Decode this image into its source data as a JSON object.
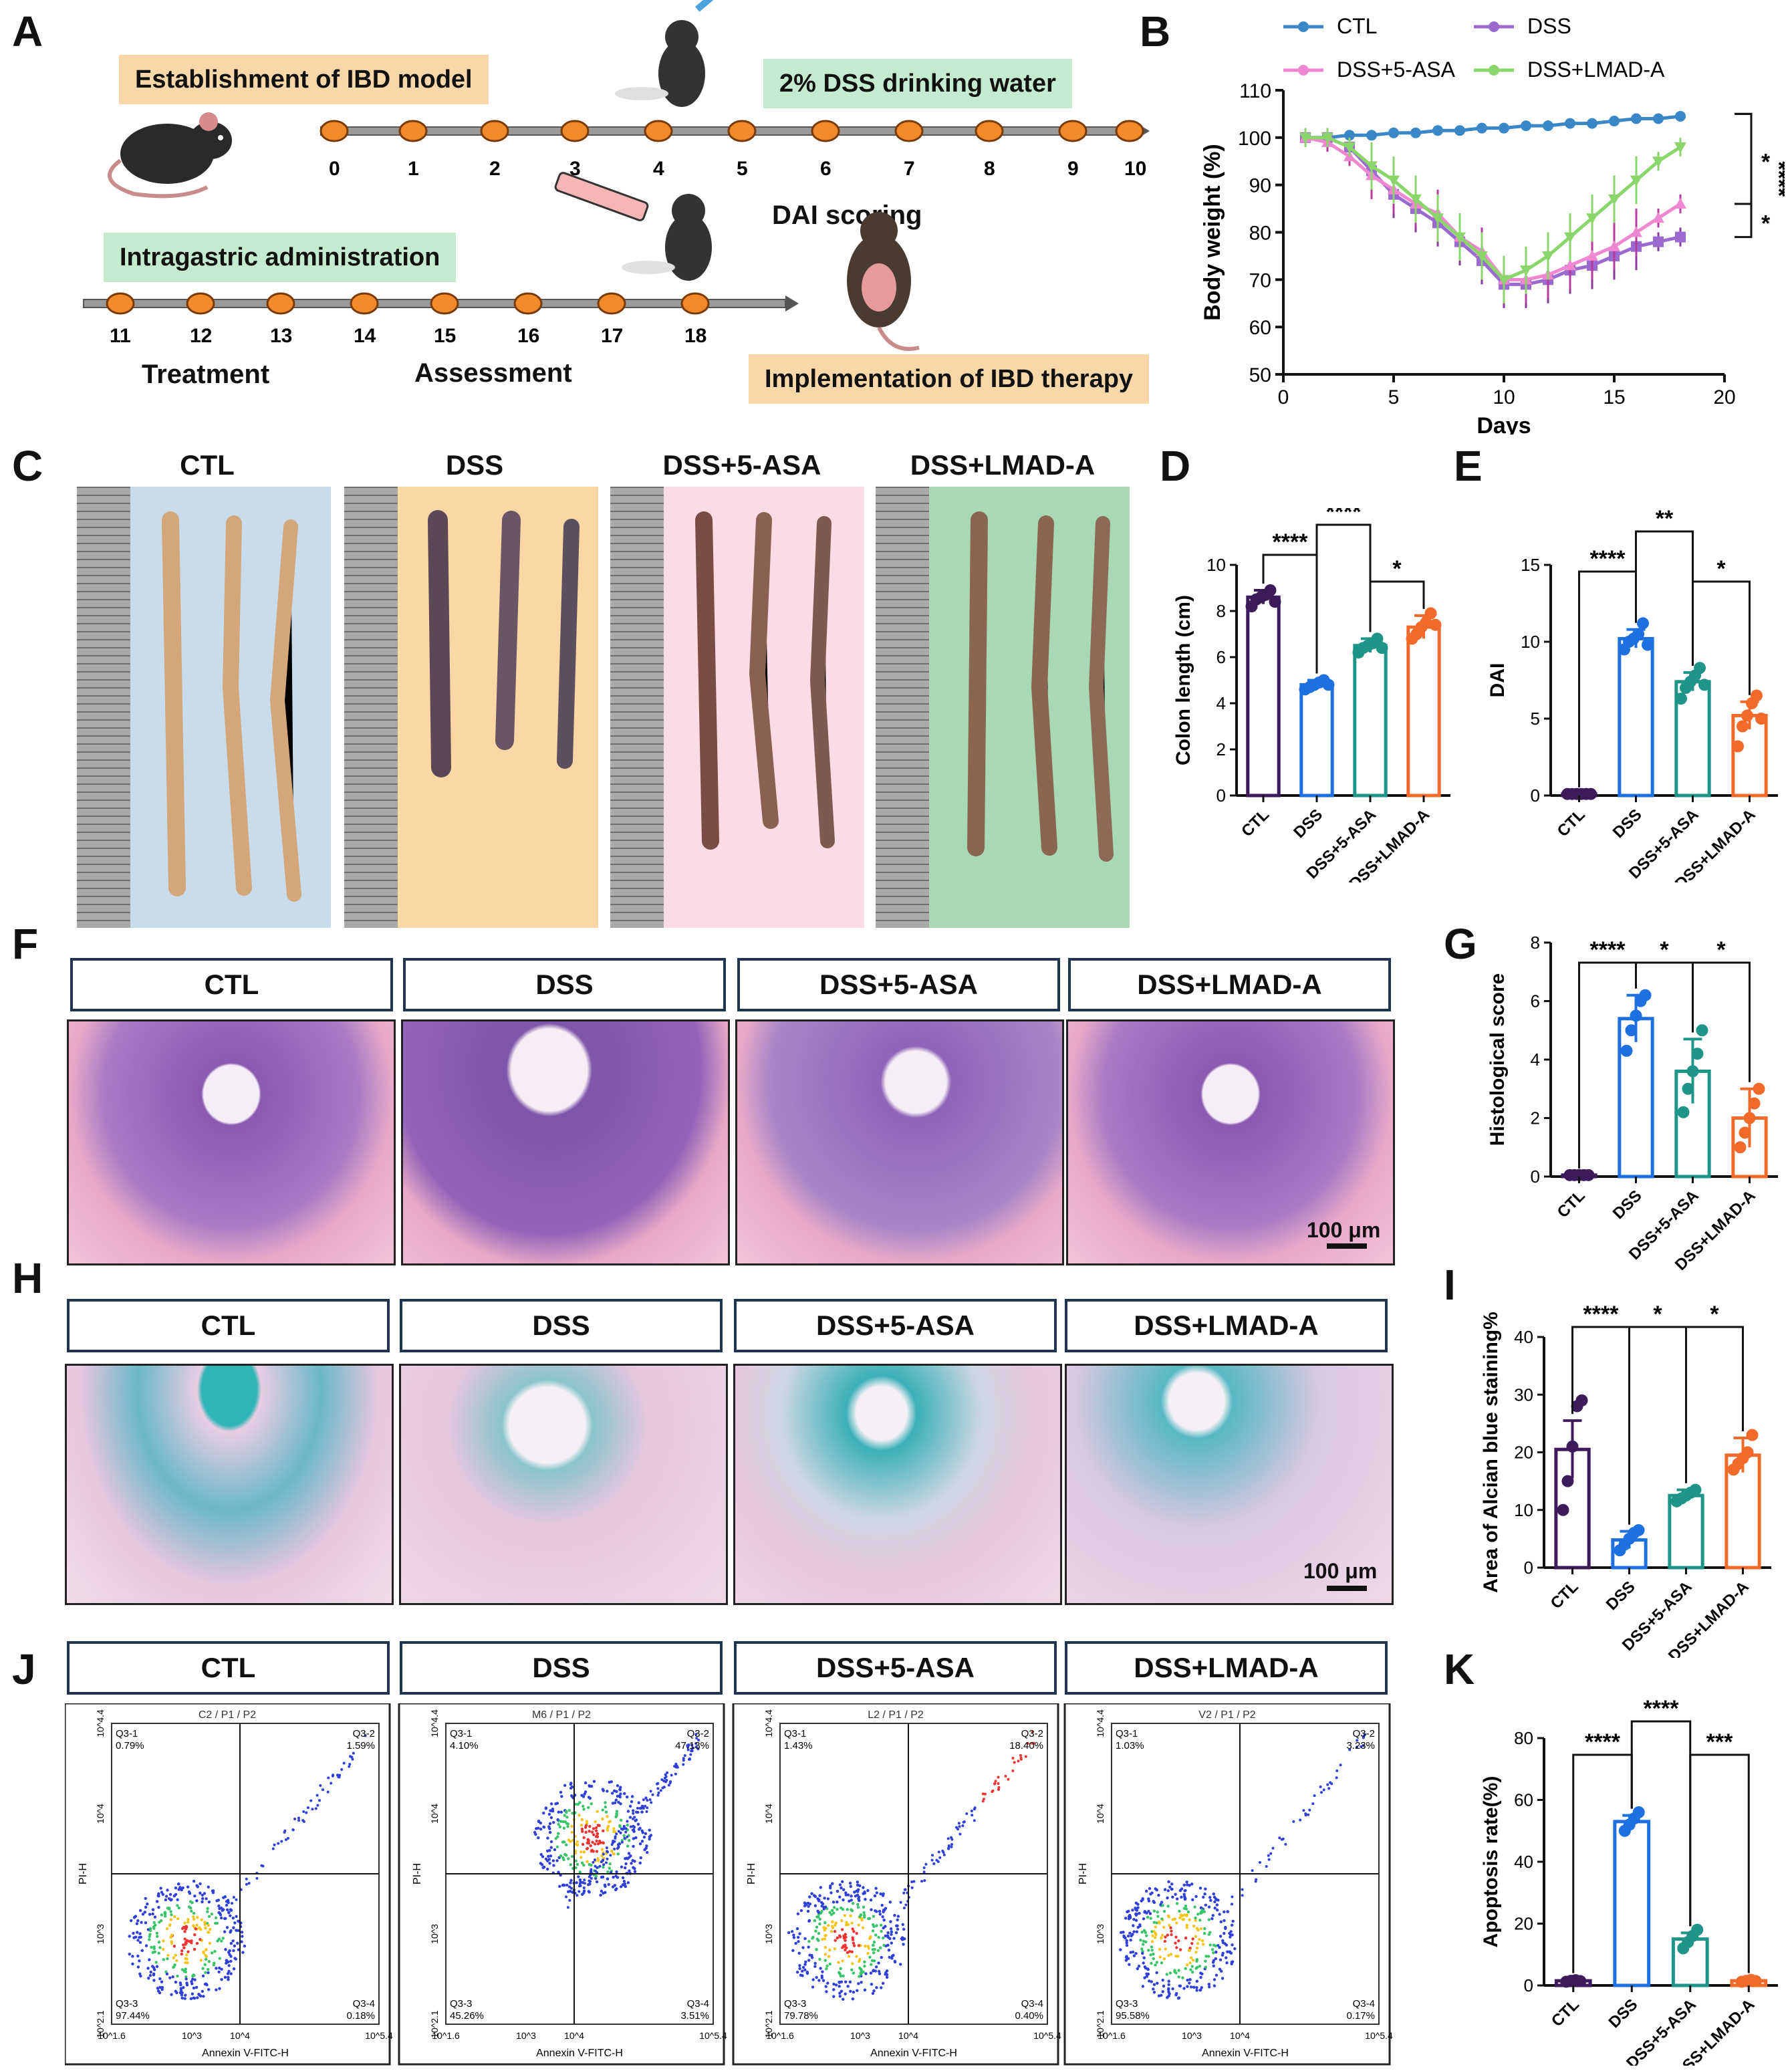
{
  "panels": {
    "A": "A",
    "B": "B",
    "C": "C",
    "D": "D",
    "E": "E",
    "F": "F",
    "G": "G",
    "H": "H",
    "I": "I",
    "J": "J",
    "K": "K"
  },
  "panelA": {
    "box1": "Establishment of IBD model",
    "box2": "2% DSS drinking water",
    "box3": "Intragastric administration",
    "box4": "Implementation of IBD therapy",
    "dai": "DAI scoring",
    "treatment": "Treatment",
    "assessment": "Assessment",
    "timeline1": [
      "0",
      "1",
      "2",
      "3",
      "4",
      "5",
      "6",
      "7",
      "8",
      "9",
      "10"
    ],
    "timeline2": [
      "11",
      "12",
      "13",
      "14",
      "15",
      "16",
      "17",
      "18"
    ]
  },
  "groups": [
    "CTL",
    "DSS",
    "DSS+5-ASA",
    "DSS+LMAD-A"
  ],
  "scale_bar": "100 μm",
  "colors": {
    "CTL": "#3d1b5a",
    "DSS": "#1e6fe0",
    "ASA": "#1f9488",
    "LMAD": "#f26a2a",
    "lineCTL": "#3a87c8",
    "lineDSS": "#9a6ad0",
    "lineASA": "#ef88d0",
    "lineLMAD": "#8ad66a"
  },
  "facs": [
    {
      "title": "C2 / P1 / P2",
      "q1": "Q3-1",
      "v1": "0.79%",
      "q2": "Q3-2",
      "v2": "1.59%",
      "q3": "Q3-3",
      "v3": "97.44%",
      "q4": "Q3-4",
      "v4": "0.18%"
    },
    {
      "title": "M6 / P1 / P2",
      "q1": "Q3-1",
      "v1": "4.10%",
      "q2": "Q3-2",
      "v2": "47.13%",
      "q3": "Q3-3",
      "v3": "45.26%",
      "q4": "Q3-4",
      "v4": "3.51%"
    },
    {
      "title": "L2 / P1 / P2",
      "q1": "Q3-1",
      "v1": "1.43%",
      "q2": "Q3-2",
      "v2": "18.40%",
      "q3": "Q3-3",
      "v3": "79.78%",
      "q4": "Q3-4",
      "v4": "0.40%"
    },
    {
      "title": "V2 / P1 / P2",
      "q1": "Q3-1",
      "v1": "1.03%",
      "q2": "Q3-2",
      "v2": "3.23%",
      "q3": "Q3-3",
      "v3": "95.58%",
      "q4": "Q3-4",
      "v4": "0.17%"
    }
  ],
  "facs_axes": {
    "xlabel": "Annexin V-FITC-H",
    "ylabel": "PI-H",
    "xticks": [
      "10^1.6",
      "10^3",
      "10^4",
      "10^5.4"
    ],
    "yticks": [
      "10^2.1",
      "10^3",
      "10^4",
      "10^4.4"
    ]
  },
  "chart_data": [
    {
      "id": "B",
      "type": "line",
      "xlabel": "Days",
      "ylabel": "Body weight (%)",
      "xlim": [
        0,
        20
      ],
      "ylim": [
        50,
        110
      ],
      "xticks": [
        0,
        5,
        10,
        15,
        20
      ],
      "yticks": [
        50,
        60,
        70,
        80,
        90,
        100,
        110
      ],
      "x": [
        1,
        2,
        3,
        4,
        5,
        6,
        7,
        8,
        9,
        10,
        11,
        12,
        13,
        14,
        15,
        16,
        17,
        18
      ],
      "series": [
        {
          "name": "CTL",
          "values": [
            100,
            100,
            100.5,
            100.5,
            101,
            101,
            101.5,
            101.5,
            102,
            102,
            102.5,
            102.5,
            103,
            103,
            103.5,
            104,
            104,
            104.5
          ]
        },
        {
          "name": "DSS",
          "values": [
            100,
            100,
            98,
            93,
            88,
            85,
            82,
            78,
            74,
            69,
            69,
            70,
            72,
            73,
            75,
            77,
            78,
            79
          ]
        },
        {
          "name": "DSS+5-ASA",
          "values": [
            100,
            99,
            96,
            92,
            89,
            86,
            84,
            79,
            76,
            70,
            70,
            71,
            73,
            75,
            77,
            80,
            83,
            86
          ]
        },
        {
          "name": "DSS+LMAD-A",
          "values": [
            100,
            100,
            98,
            94,
            91,
            87,
            83,
            79,
            75,
            70,
            72,
            75,
            79,
            83,
            87,
            91,
            95,
            98
          ]
        }
      ],
      "annotations": [
        "*",
        "*",
        "****"
      ]
    },
    {
      "id": "D",
      "type": "bar",
      "ylabel": "Colon length (cm)",
      "ylim": [
        0,
        10
      ],
      "yticks": [
        0,
        2,
        4,
        6,
        8,
        10
      ],
      "categories": [
        "CTL",
        "DSS",
        "DSS+5-ASA",
        "DSS+LMAD-A"
      ],
      "values": [
        8.6,
        4.8,
        6.5,
        7.3
      ],
      "errors": [
        0.3,
        0.2,
        0.3,
        0.5
      ],
      "points": [
        [
          8.2,
          8.5,
          8.6,
          8.7,
          8.9,
          8.4
        ],
        [
          4.6,
          4.7,
          4.8,
          4.9,
          5.0,
          4.8
        ],
        [
          6.2,
          6.4,
          6.5,
          6.6,
          6.8,
          6.4
        ],
        [
          6.8,
          7.0,
          7.3,
          7.5,
          7.9,
          7.4
        ]
      ],
      "sig": [
        [
          "CTL",
          "DSS",
          "****"
        ],
        [
          "DSS",
          "DSS+5-ASA",
          "****"
        ],
        [
          "DSS+5-ASA",
          "DSS+LMAD-A",
          "*"
        ]
      ]
    },
    {
      "id": "E",
      "type": "bar",
      "ylabel": "DAI",
      "ylim": [
        0,
        15
      ],
      "yticks": [
        0,
        5,
        10,
        15
      ],
      "categories": [
        "CTL",
        "DSS",
        "DSS+5-ASA",
        "DSS+LMAD-A"
      ],
      "values": [
        0.1,
        10.2,
        7.4,
        5.2
      ],
      "errors": [
        0,
        0.6,
        0.6,
        0.9
      ],
      "points": [
        [
          0.1,
          0.1,
          0.1,
          0.1,
          0.1,
          0.1
        ],
        [
          9.5,
          10,
          10.2,
          10.5,
          11.2,
          9.8
        ],
        [
          6.3,
          7,
          7.4,
          7.8,
          8.3,
          7.2
        ],
        [
          3.2,
          4.5,
          5.2,
          6,
          6.5,
          5
        ]
      ],
      "sig": [
        [
          "CTL",
          "DSS",
          "****"
        ],
        [
          "DSS",
          "DSS+5-ASA",
          "**"
        ],
        [
          "DSS+5-ASA",
          "DSS+LMAD-A",
          "*"
        ]
      ]
    },
    {
      "id": "G",
      "type": "bar",
      "ylabel": "Histological score",
      "ylim": [
        0,
        8
      ],
      "yticks": [
        0,
        2,
        4,
        6,
        8
      ],
      "categories": [
        "CTL",
        "DSS",
        "DSS+5-ASA",
        "DSS+LMAD-A"
      ],
      "values": [
        0.05,
        5.4,
        3.6,
        2.0
      ],
      "errors": [
        0,
        0.8,
        1.1,
        1.0
      ],
      "points": [
        [
          0.05,
          0.05,
          0.05,
          0.05,
          0.05
        ],
        [
          4.3,
          5.0,
          5.5,
          6.0,
          6.2
        ],
        [
          2.2,
          3.0,
          3.6,
          4.2,
          5.0
        ],
        [
          1.0,
          1.5,
          2.0,
          2.5,
          3.0
        ]
      ],
      "sig": [
        [
          "CTL",
          "DSS",
          "****"
        ],
        [
          "DSS",
          "DSS+5-ASA",
          "*"
        ],
        [
          "DSS+5-ASA",
          "DSS+LMAD-A",
          "*"
        ]
      ]
    },
    {
      "id": "I",
      "type": "bar",
      "ylabel": "Area of Alcian blue staining%",
      "ylim": [
        0,
        40
      ],
      "yticks": [
        0,
        10,
        20,
        30,
        40
      ],
      "categories": [
        "CTL",
        "DSS",
        "DSS+5-ASA",
        "DSS+LMAD-A"
      ],
      "values": [
        20.5,
        4.8,
        12.5,
        19.5
      ],
      "errors": [
        5,
        1.5,
        1,
        3
      ],
      "points": [
        [
          10,
          15,
          21,
          28,
          29
        ],
        [
          3,
          4,
          5,
          6,
          6.5
        ],
        [
          11.5,
          12,
          12.5,
          13,
          13.5
        ],
        [
          17,
          18,
          19,
          20,
          23
        ]
      ],
      "sig": [
        [
          "CTL",
          "DSS",
          "****"
        ],
        [
          "DSS",
          "DSS+5-ASA",
          "*"
        ],
        [
          "DSS+5-ASA",
          "DSS+LMAD-A",
          "*"
        ]
      ]
    },
    {
      "id": "K",
      "type": "bar",
      "ylabel": "Apoptosis rate(%)",
      "ylim": [
        0,
        80
      ],
      "yticks": [
        0,
        20,
        40,
        60,
        80
      ],
      "categories": [
        "CTL",
        "DSS",
        "DSS+5-ASA",
        "DSS+LMAD-A"
      ],
      "values": [
        1.5,
        53,
        15,
        1.5
      ],
      "errors": [
        0.3,
        2,
        2,
        0.3
      ],
      "points": [
        [
          1.2,
          1.5,
          1.7,
          1.4
        ],
        [
          50,
          52,
          54,
          56
        ],
        [
          12,
          14,
          16,
          18
        ],
        [
          1.2,
          1.5,
          1.8,
          1.4
        ]
      ],
      "sig": [
        [
          "CTL",
          "DSS",
          "****"
        ],
        [
          "DSS",
          "DSS+5-ASA",
          "****"
        ],
        [
          "DSS+5-ASA",
          "DSS+LMAD-A",
          "***"
        ]
      ]
    }
  ]
}
